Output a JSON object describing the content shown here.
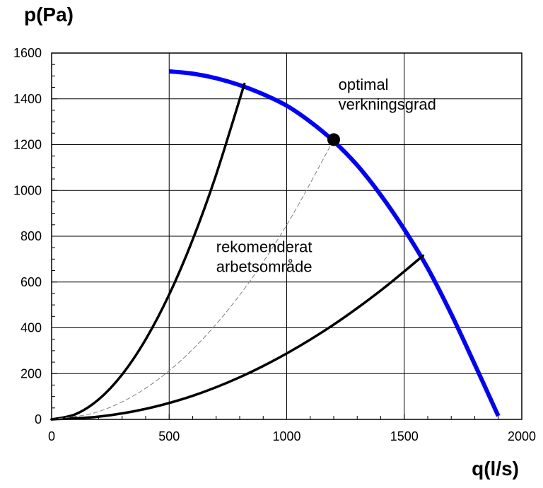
{
  "chart_data": {
    "type": "line",
    "title": "",
    "xlabel": "q(l/s)",
    "ylabel": "p(Pa)",
    "xlim": [
      0,
      2000
    ],
    "ylim": [
      0,
      1600
    ],
    "xticks": [
      0,
      500,
      1000,
      1500,
      2000
    ],
    "yticks": [
      0,
      200,
      400,
      600,
      800,
      1000,
      1200,
      1400,
      1600
    ],
    "grid": true,
    "series": [
      {
        "name": "",
        "color": "#0000ff",
        "x": [
          500,
          600,
          700,
          800,
          900,
          1000,
          1100,
          1200,
          1300,
          1400,
          1500,
          1600,
          1700,
          1800,
          1900
        ],
        "y": [
          1520,
          1510,
          1490,
          1460,
          1420,
          1370,
          1300,
          1215,
          1110,
          980,
          830,
          660,
          460,
          240,
          15
        ]
      },
      {
        "name": "",
        "color": "#000000",
        "x": [
          0,
          100,
          200,
          300,
          400,
          500,
          600,
          700,
          820
        ],
        "y": [
          0,
          22,
          87,
          196,
          349,
          545,
          785,
          1069,
          1465
        ]
      },
      {
        "name": "",
        "color": "#000000",
        "x": [
          0,
          200,
          400,
          600,
          800,
          1000,
          1200,
          1400,
          1580
        ],
        "y": [
          0,
          12,
          46,
          103,
          184,
          288,
          414,
          563,
          715
        ]
      },
      {
        "name": "",
        "color": "#808080",
        "dashed": true,
        "x": [
          0,
          200,
          400,
          600,
          800,
          1000,
          1200
        ],
        "y": [
          0,
          34,
          136,
          306,
          543,
          849,
          1222
        ]
      }
    ],
    "points": [
      {
        "x": 1200,
        "y": 1222,
        "color": "#000000"
      }
    ],
    "annotations": [
      {
        "lines": [
          "optimal",
          "verkningsgrad"
        ],
        "x": 1220,
        "y": 1440
      },
      {
        "lines": [
          "rekomenderat",
          "arbetsområde"
        ],
        "x": 700,
        "y": 730
      }
    ]
  }
}
